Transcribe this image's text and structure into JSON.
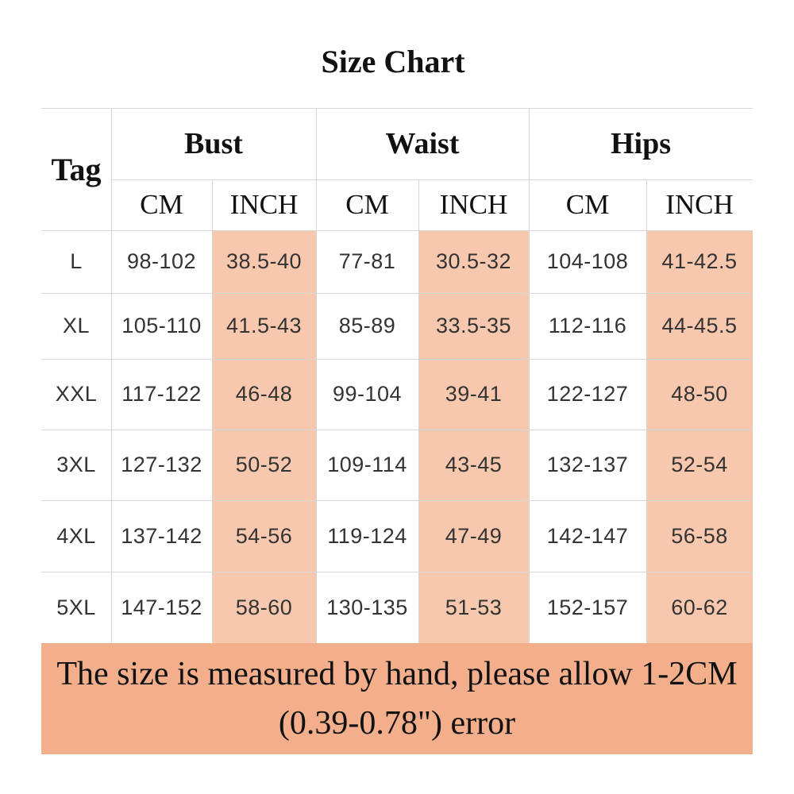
{
  "title": "Size Chart",
  "tag_header": "Tag",
  "groups": [
    {
      "name": "Bust",
      "units": [
        "CM",
        "INCH"
      ]
    },
    {
      "name": "Waist",
      "units": [
        "CM",
        "INCH"
      ]
    },
    {
      "name": "Hips",
      "units": [
        "CM",
        "INCH"
      ]
    }
  ],
  "rows": [
    {
      "tag": "L",
      "cells": [
        "98-102",
        "38.5-40",
        "77-81",
        "30.5-32",
        "104-108",
        "41-42.5"
      ]
    },
    {
      "tag": "XL",
      "cells": [
        "105-110",
        "41.5-43",
        "85-89",
        "33.5-35",
        "112-116",
        "44-45.5"
      ]
    },
    {
      "tag": "XXL",
      "cells": [
        "117-122",
        "46-48",
        "99-104",
        "39-41",
        "122-127",
        "48-50"
      ]
    },
    {
      "tag": "3XL",
      "cells": [
        "127-132",
        "50-52",
        "109-114",
        "43-45",
        "132-137",
        "52-54"
      ]
    },
    {
      "tag": "4XL",
      "cells": [
        "137-142",
        "54-56",
        "119-124",
        "47-49",
        "142-147",
        "56-58"
      ]
    },
    {
      "tag": "5XL",
      "cells": [
        "147-152",
        "58-60",
        "130-135",
        "51-53",
        "152-157",
        "60-62"
      ]
    }
  ],
  "note": "The size is measured by hand, please allow 1-2CM (0.39-0.78\") error",
  "colors": {
    "inch_column_fill": "#f8c8ae",
    "note_fill": "#f3af8c",
    "grid": "#d7d7d7"
  }
}
